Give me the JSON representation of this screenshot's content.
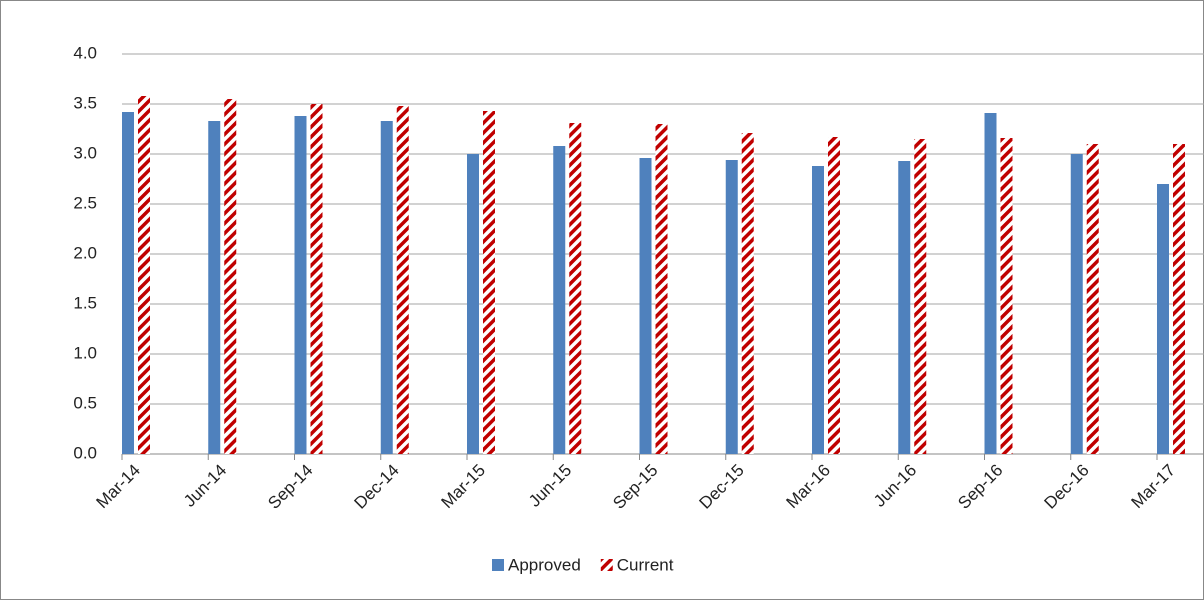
{
  "chart_data": {
    "type": "bar",
    "categories": [
      "Mar-14",
      "Jun-14",
      "Sep-14",
      "Dec-14",
      "Mar-15",
      "Jun-15",
      "Sep-15",
      "Dec-15",
      "Mar-16",
      "Jun-16",
      "Sep-16",
      "Dec-16",
      "Mar-17"
    ],
    "series": [
      {
        "name": "Approved",
        "color": "#4f81bd",
        "values": [
          3.42,
          3.33,
          3.38,
          3.33,
          3.0,
          3.08,
          2.96,
          2.94,
          2.88,
          2.93,
          3.41,
          3.0,
          2.7
        ]
      },
      {
        "name": "Current",
        "color": "#c00000",
        "pattern": "hatch",
        "values": [
          3.58,
          3.55,
          3.5,
          3.48,
          3.43,
          3.31,
          3.3,
          3.21,
          3.17,
          3.15,
          3.16,
          3.1,
          3.1
        ]
      }
    ],
    "ylim": [
      0,
      4
    ],
    "yticks": [
      {
        "value": 0,
        "label": "0.0"
      },
      {
        "value": 0.5,
        "label": "0.5"
      },
      {
        "value": 1,
        "label": "1.0"
      },
      {
        "value": 1.5,
        "label": "1.5"
      },
      {
        "value": 2,
        "label": "2.0"
      },
      {
        "value": 2.5,
        "label": "2.5"
      },
      {
        "value": 3,
        "label": "3.0"
      },
      {
        "value": 3.5,
        "label": "3.5"
      },
      {
        "value": 4,
        "label": "4.0"
      }
    ],
    "grid": true,
    "legend": "bottom"
  }
}
